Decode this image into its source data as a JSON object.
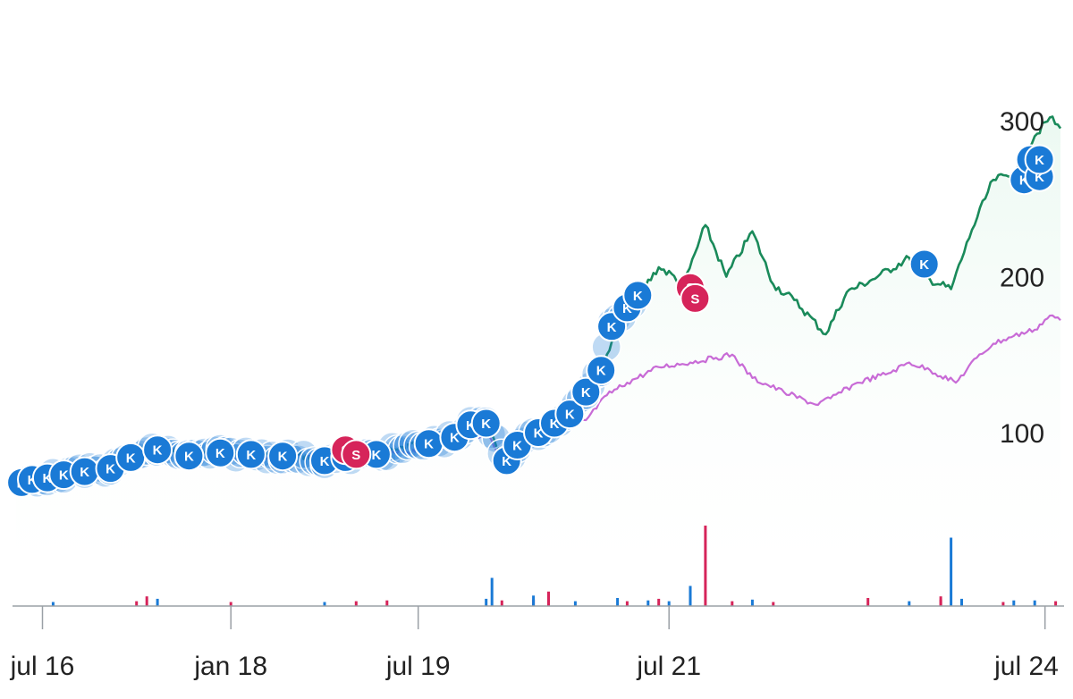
{
  "chart_data": {
    "type": "line",
    "title": "",
    "xlabel": "",
    "ylabel": "",
    "x_tick_labels": [
      "jul 16",
      "jan 18",
      "jul 19",
      "jul 21",
      "jul 24"
    ],
    "x_tick_dates": [
      "2016-07-01",
      "2018-01-01",
      "2019-07-01",
      "2021-07-01",
      "2024-07-01"
    ],
    "xlim": [
      "2016-04-15",
      "2024-08-15"
    ],
    "y_tick_labels": [
      "100",
      "200",
      "300"
    ],
    "y_ticks": [
      100,
      200,
      300
    ],
    "ylim": [
      45,
      320
    ],
    "grid": false,
    "y_axis_side": "right",
    "colors": {
      "stock": "#1a8a5a",
      "benchmark": "#c86bd6",
      "buy_marker": "#1a7ad6",
      "sell_marker": "#d6245a",
      "area_fill": "#e9f8f0",
      "axis": "#9aa0a6"
    },
    "series": [
      {
        "key": "stock",
        "points": [
          [
            "2016-04-15",
            75
          ],
          [
            "2016-05-01",
            68
          ],
          [
            "2016-07-01",
            72
          ],
          [
            "2016-09-01",
            75
          ],
          [
            "2016-11-01",
            76
          ],
          [
            "2017-01-01",
            80
          ],
          [
            "2017-03-01",
            86
          ],
          [
            "2017-05-01",
            90
          ],
          [
            "2017-07-01",
            90
          ],
          [
            "2017-09-01",
            85
          ],
          [
            "2017-11-01",
            88
          ],
          [
            "2018-01-01",
            85
          ],
          [
            "2018-03-01",
            87
          ],
          [
            "2018-05-01",
            85
          ],
          [
            "2018-07-01",
            86
          ],
          [
            "2018-09-01",
            85
          ],
          [
            "2018-11-01",
            80
          ],
          [
            "2018-12-15",
            84
          ],
          [
            "2019-01-15",
            83
          ],
          [
            "2019-03-01",
            85
          ],
          [
            "2019-05-01",
            89
          ],
          [
            "2019-07-01",
            92
          ],
          [
            "2019-09-01",
            93
          ],
          [
            "2019-11-01",
            98
          ],
          [
            "2020-01-15",
            106
          ],
          [
            "2020-03-15",
            80
          ],
          [
            "2020-05-01",
            98
          ],
          [
            "2020-07-01",
            102
          ],
          [
            "2020-09-01",
            115
          ],
          [
            "2020-11-01",
            125
          ],
          [
            "2021-01-01",
            150
          ],
          [
            "2021-03-01",
            178
          ],
          [
            "2021-06-01",
            206
          ],
          [
            "2021-08-15",
            196
          ],
          [
            "2021-10-15",
            233
          ],
          [
            "2021-12-15",
            200
          ],
          [
            "2022-03-01",
            229
          ],
          [
            "2022-05-01",
            195
          ],
          [
            "2022-07-01",
            185
          ],
          [
            "2022-10-01",
            163
          ],
          [
            "2022-12-01",
            190
          ],
          [
            "2023-03-01",
            200
          ],
          [
            "2023-06-01",
            212
          ],
          [
            "2023-08-01",
            198
          ],
          [
            "2023-10-01",
            192
          ],
          [
            "2023-12-01",
            230
          ],
          [
            "2024-02-01",
            262
          ],
          [
            "2024-04-01",
            266
          ],
          [
            "2024-06-01",
            290
          ],
          [
            "2024-07-15",
            302
          ],
          [
            "2024-08-15",
            295
          ]
        ]
      },
      {
        "key": "benchmark",
        "points": [
          [
            "2016-04-15",
            75
          ],
          [
            "2016-05-01",
            71
          ],
          [
            "2016-06-15",
            68
          ],
          [
            "2016-09-01",
            72
          ],
          [
            "2016-11-01",
            74
          ],
          [
            "2017-01-01",
            78
          ],
          [
            "2017-03-01",
            84
          ],
          [
            "2017-05-01",
            88
          ],
          [
            "2017-07-01",
            90
          ],
          [
            "2017-09-01",
            86
          ],
          [
            "2017-11-01",
            87
          ],
          [
            "2018-01-01",
            84
          ],
          [
            "2018-03-01",
            85
          ],
          [
            "2018-05-01",
            84
          ],
          [
            "2018-07-01",
            85
          ],
          [
            "2018-09-01",
            84
          ],
          [
            "2018-11-01",
            82
          ],
          [
            "2018-12-15",
            83
          ],
          [
            "2019-01-15",
            84
          ],
          [
            "2019-03-01",
            86
          ],
          [
            "2019-05-01",
            87
          ],
          [
            "2019-07-01",
            89
          ],
          [
            "2019-09-01",
            90
          ],
          [
            "2019-11-01",
            93
          ],
          [
            "2020-01-15",
            100
          ],
          [
            "2020-03-15",
            80
          ],
          [
            "2020-05-01",
            92
          ],
          [
            "2020-07-01",
            95
          ],
          [
            "2020-09-01",
            103
          ],
          [
            "2020-11-01",
            108
          ],
          [
            "2021-01-01",
            124
          ],
          [
            "2021-03-01",
            132
          ],
          [
            "2021-06-01",
            142
          ],
          [
            "2021-09-01",
            145
          ],
          [
            "2021-11-15",
            148
          ],
          [
            "2022-01-01",
            150
          ],
          [
            "2022-03-01",
            135
          ],
          [
            "2022-06-01",
            126
          ],
          [
            "2022-09-01",
            118
          ],
          [
            "2022-10-15",
            122
          ],
          [
            "2023-01-01",
            132
          ],
          [
            "2023-04-01",
            138
          ],
          [
            "2023-06-01",
            145
          ],
          [
            "2023-08-01",
            140
          ],
          [
            "2023-10-15",
            132
          ],
          [
            "2023-12-15",
            148
          ],
          [
            "2024-02-01",
            157
          ],
          [
            "2024-04-01",
            162
          ],
          [
            "2024-06-01",
            166
          ],
          [
            "2024-07-15",
            175
          ],
          [
            "2024-08-15",
            172
          ]
        ]
      }
    ],
    "markers": [
      {
        "date": "2016-05-01",
        "price": 68,
        "label": "K",
        "side": "buy"
      },
      {
        "date": "2016-06-01",
        "price": 70,
        "label": "K",
        "side": "buy"
      },
      {
        "date": "2016-07-15",
        "price": 71,
        "label": "K",
        "side": "buy"
      },
      {
        "date": "2016-09-01",
        "price": 73,
        "label": "K",
        "side": "buy"
      },
      {
        "date": "2016-11-01",
        "price": 75,
        "label": "K",
        "side": "buy"
      },
      {
        "date": "2017-01-15",
        "price": 77,
        "label": "K",
        "side": "buy"
      },
      {
        "date": "2017-03-15",
        "price": 84,
        "label": "K",
        "side": "buy"
      },
      {
        "date": "2017-06-01",
        "price": 89,
        "label": "K",
        "side": "buy"
      },
      {
        "date": "2017-09-01",
        "price": 85,
        "label": "K",
        "side": "buy"
      },
      {
        "date": "2017-12-01",
        "price": 87,
        "label": "K",
        "side": "buy"
      },
      {
        "date": "2018-03-01",
        "price": 86,
        "label": "K",
        "side": "buy"
      },
      {
        "date": "2018-06-01",
        "price": 85,
        "label": "K",
        "side": "buy"
      },
      {
        "date": "2018-10-01",
        "price": 82,
        "label": "K",
        "side": "buy"
      },
      {
        "date": "2018-12-01",
        "price": 84,
        "label": "K",
        "side": "buy"
      },
      {
        "date": "2019-03-01",
        "price": 86,
        "label": "K",
        "side": "buy"
      },
      {
        "date": "2019-08-01",
        "price": 93,
        "label": "K",
        "side": "buy"
      },
      {
        "date": "2019-10-15",
        "price": 97,
        "label": "K",
        "side": "buy"
      },
      {
        "date": "2019-12-01",
        "price": 105,
        "label": "K",
        "side": "buy"
      },
      {
        "date": "2020-01-15",
        "price": 106,
        "label": "K",
        "side": "buy"
      },
      {
        "date": "2020-03-15",
        "price": 82,
        "label": "K",
        "side": "buy"
      },
      {
        "date": "2020-04-15",
        "price": 92,
        "label": "K",
        "side": "buy"
      },
      {
        "date": "2020-06-15",
        "price": 100,
        "label": "K",
        "side": "buy"
      },
      {
        "date": "2020-08-01",
        "price": 106,
        "label": "K",
        "side": "buy"
      },
      {
        "date": "2020-09-15",
        "price": 112,
        "label": "K",
        "side": "buy"
      },
      {
        "date": "2020-11-01",
        "price": 126,
        "label": "K",
        "side": "buy"
      },
      {
        "date": "2020-12-15",
        "price": 140,
        "label": "K",
        "side": "buy"
      },
      {
        "date": "2021-01-15",
        "price": 168,
        "label": "K",
        "side": "buy"
      },
      {
        "date": "2021-03-01",
        "price": 180,
        "label": "K",
        "side": "buy"
      },
      {
        "date": "2021-04-01",
        "price": 188,
        "label": "K",
        "side": "buy"
      },
      {
        "date": "2023-07-15",
        "price": 208,
        "label": "K",
        "side": "buy"
      },
      {
        "date": "2024-05-01",
        "price": 262,
        "label": "K",
        "side": "buy"
      },
      {
        "date": "2024-05-20",
        "price": 275,
        "label": "K",
        "side": "buy"
      },
      {
        "date": "2024-06-15",
        "price": 264,
        "label": "K",
        "side": "buy"
      },
      {
        "date": "2024-06-15",
        "price": 275,
        "label": "K",
        "side": "buy"
      },
      {
        "date": "2018-12-01",
        "price": 89,
        "label": "S",
        "side": "sell"
      },
      {
        "date": "2019-01-01",
        "price": 86,
        "label": "S",
        "side": "sell"
      },
      {
        "date": "2021-09-01",
        "price": 193,
        "label": "S",
        "side": "sell"
      },
      {
        "date": "2021-09-15",
        "price": 186,
        "label": "S",
        "side": "sell"
      }
    ],
    "volume": [
      {
        "date": "2016-08-01",
        "value": 0.05,
        "side": "buy"
      },
      {
        "date": "2017-04-01",
        "value": 0.06,
        "side": "sell"
      },
      {
        "date": "2017-05-01",
        "value": 0.12,
        "side": "sell"
      },
      {
        "date": "2017-06-01",
        "value": 0.09,
        "side": "buy"
      },
      {
        "date": "2018-01-01",
        "value": 0.05,
        "side": "sell"
      },
      {
        "date": "2018-10-01",
        "value": 0.05,
        "side": "buy"
      },
      {
        "date": "2019-01-01",
        "value": 0.06,
        "side": "sell"
      },
      {
        "date": "2019-04-01",
        "value": 0.07,
        "side": "sell"
      },
      {
        "date": "2020-01-15",
        "value": 0.09,
        "side": "buy"
      },
      {
        "date": "2020-02-01",
        "value": 0.35,
        "side": "buy"
      },
      {
        "date": "2020-03-01",
        "value": 0.07,
        "side": "sell"
      },
      {
        "date": "2020-06-01",
        "value": 0.08,
        "side": "sell"
      },
      {
        "date": "2020-10-01",
        "value": 0.06,
        "side": "buy"
      },
      {
        "date": "2021-02-01",
        "value": 0.1,
        "side": "buy"
      },
      {
        "date": "2021-03-01",
        "value": 0.06,
        "side": "sell"
      },
      {
        "date": "2021-05-01",
        "value": 0.07,
        "side": "buy"
      },
      {
        "date": "2021-06-01",
        "value": 0.09,
        "side": "sell"
      },
      {
        "date": "2021-07-01",
        "value": 0.06,
        "side": "buy"
      },
      {
        "date": "2022-01-01",
        "value": 0.06,
        "side": "sell"
      },
      {
        "date": "2022-05-01",
        "value": 0.05,
        "side": "sell"
      },
      {
        "date": "2023-02-01",
        "value": 0.1,
        "side": "sell"
      },
      {
        "date": "2023-06-01",
        "value": 0.06,
        "side": "buy"
      },
      {
        "date": "2023-09-01",
        "value": 0.08,
        "side": "sell"
      },
      {
        "date": "2023-11-01",
        "value": 0.09,
        "side": "buy"
      },
      {
        "date": "2024-03-01",
        "value": 0.05,
        "side": "sell"
      },
      {
        "date": "2024-06-01",
        "value": 0.07,
        "side": "buy"
      },
      {
        "date": "2024-08-01",
        "value": 0.06,
        "side": "sell"
      }
    ],
    "volume_spikes": [
      {
        "date": "2021-10-15",
        "value": 1.0,
        "side": "sell"
      },
      {
        "date": "2021-09-01",
        "value": 0.25,
        "side": "buy"
      },
      {
        "date": "2023-10-01",
        "value": 0.85,
        "side": "buy"
      },
      {
        "date": "2023-09-01",
        "value": 0.12,
        "side": "sell"
      },
      {
        "date": "2020-07-15",
        "value": 0.18,
        "side": "sell"
      },
      {
        "date": "2020-06-01",
        "value": 0.13,
        "side": "buy"
      },
      {
        "date": "2022-03-01",
        "value": 0.08,
        "side": "buy"
      },
      {
        "date": "2024-04-01",
        "value": 0.07,
        "side": "buy"
      }
    ]
  }
}
